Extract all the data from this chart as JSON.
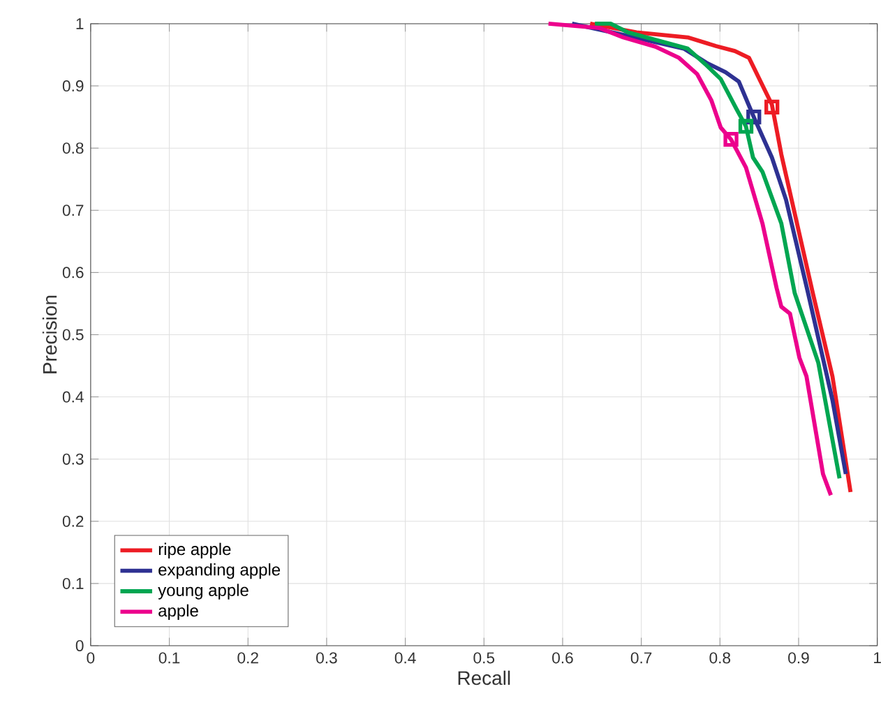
{
  "chart_data": {
    "type": "line",
    "xlabel": "Recall",
    "ylabel": "Precision",
    "xlim": [
      0,
      1
    ],
    "ylim": [
      0,
      1
    ],
    "xticks": [
      0,
      0.1,
      0.2,
      0.3,
      0.4,
      0.5,
      0.6,
      0.7,
      0.8,
      0.9,
      1
    ],
    "yticks": [
      0,
      0.1,
      0.2,
      0.3,
      0.4,
      0.5,
      0.6,
      0.7,
      0.8,
      0.9,
      1
    ],
    "grid": true,
    "legend": "bottom left",
    "line_style": "solid",
    "series": [
      {
        "name": "ripe apple",
        "color": "#ed1c24",
        "x": [
          0.635,
          0.694,
          0.759,
          0.795,
          0.819,
          0.837,
          0.866,
          0.878,
          0.918,
          0.943,
          0.966
        ],
        "values": [
          1.0,
          0.986,
          0.978,
          0.964,
          0.956,
          0.945,
          0.87,
          0.79,
          0.567,
          0.433,
          0.247
        ]
      },
      {
        "name": "expanding apple",
        "color": "#2e3192",
        "x": [
          0.612,
          0.677,
          0.754,
          0.783,
          0.807,
          0.824,
          0.843,
          0.866,
          0.884,
          0.912,
          0.943,
          0.96
        ],
        "values": [
          1.0,
          0.982,
          0.96,
          0.937,
          0.922,
          0.907,
          0.85,
          0.785,
          0.717,
          0.567,
          0.395,
          0.276
        ]
      },
      {
        "name": "young apple",
        "color": "#00a651",
        "x": [
          0.641,
          0.661,
          0.683,
          0.759,
          0.783,
          0.801,
          0.821,
          0.833,
          0.842,
          0.854,
          0.878,
          0.895,
          0.925,
          0.952
        ],
        "values": [
          1.0,
          1.0,
          0.986,
          0.96,
          0.933,
          0.911,
          0.863,
          0.835,
          0.785,
          0.762,
          0.679,
          0.567,
          0.455,
          0.269
        ]
      },
      {
        "name": "apple",
        "color": "#ec008c",
        "x": [
          0.582,
          0.647,
          0.677,
          0.718,
          0.748,
          0.771,
          0.789,
          0.801,
          0.814,
          0.833,
          0.854,
          0.872,
          0.878,
          0.889,
          0.901,
          0.91,
          0.931,
          0.941
        ],
        "values": [
          1.0,
          0.993,
          0.978,
          0.963,
          0.945,
          0.919,
          0.877,
          0.833,
          0.814,
          0.769,
          0.679,
          0.575,
          0.545,
          0.534,
          0.463,
          0.433,
          0.276,
          0.242
        ]
      },
      {
        "type": "scatter",
        "marker": "square",
        "x": [
          0.866,
          0.843,
          0.833,
          0.814
        ],
        "values": [
          0.866,
          0.85,
          0.835,
          0.814
        ],
        "colors": [
          "#ed1c24",
          "#2e3192",
          "#00a651",
          "#ec008c"
        ]
      }
    ]
  }
}
